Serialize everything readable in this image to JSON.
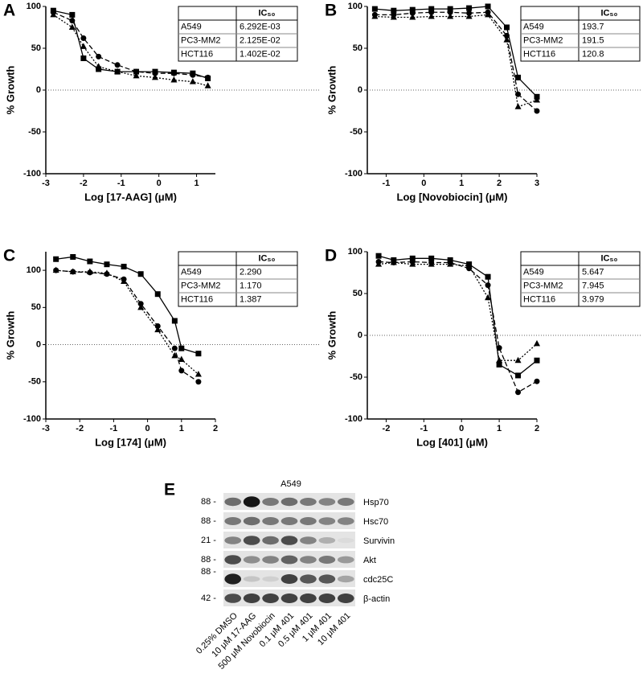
{
  "chart_data": [
    {
      "type": "line",
      "panel": "A",
      "xlabel": "Log [17-AAG] (μM)",
      "ylabel": "% Growth",
      "table_header": "IC₅₀",
      "xlim": [
        -3,
        1.5
      ],
      "xticks": [
        -3,
        -2,
        -1,
        0,
        1
      ],
      "ylim": [
        -100,
        100
      ],
      "yticks": [
        -100,
        -50,
        0,
        50,
        100
      ],
      "zero_line": true,
      "x": [
        -2.8,
        -2.3,
        -2.0,
        -1.6,
        -1.1,
        -0.6,
        -0.1,
        0.4,
        0.9,
        1.3
      ],
      "series": [
        {
          "name": "A549",
          "ic50": "6.292E-03",
          "color": "#000000",
          "marker": "circle",
          "line_style": "dashed",
          "values": [
            93,
            83,
            62,
            40,
            30,
            22,
            20,
            20,
            18,
            15
          ]
        },
        {
          "name": "PC3-MM2",
          "ic50": "2.125E-02",
          "color": "#000000",
          "marker": "square",
          "line_style": "solid",
          "values": [
            95,
            90,
            38,
            25,
            22,
            22,
            22,
            21,
            20,
            14
          ]
        },
        {
          "name": "HCT116",
          "ic50": "1.402E-02",
          "color": "#000000",
          "marker": "triangle",
          "line_style": "dotted",
          "values": [
            90,
            75,
            52,
            28,
            22,
            17,
            15,
            12,
            10,
            5
          ]
        }
      ]
    },
    {
      "type": "line",
      "panel": "B",
      "xlabel": "Log [Novobiocin] (μM)",
      "ylabel": "% Growth",
      "table_header": "IC₅₀",
      "xlim": [
        -1.5,
        3
      ],
      "xticks": [
        -1,
        0,
        1,
        2,
        3
      ],
      "ylim": [
        -100,
        100
      ],
      "yticks": [
        -100,
        -50,
        0,
        50,
        100
      ],
      "zero_line": true,
      "x": [
        -1.3,
        -0.8,
        -0.3,
        0.2,
        0.7,
        1.2,
        1.7,
        2.2,
        2.5,
        3.0
      ],
      "series": [
        {
          "name": "A549",
          "ic50": "193.7",
          "color": "#000000",
          "marker": "circle",
          "line_style": "dashed",
          "values": [
            90,
            90,
            92,
            93,
            93,
            92,
            93,
            65,
            -5,
            -25
          ]
        },
        {
          "name": "PC3-MM2",
          "ic50": "191.5",
          "color": "#000000",
          "marker": "square",
          "line_style": "solid",
          "values": [
            97,
            95,
            96,
            97,
            97,
            98,
            100,
            75,
            15,
            -8
          ]
        },
        {
          "name": "HCT116",
          "ic50": "120.8",
          "color": "#000000",
          "marker": "triangle",
          "line_style": "dotted",
          "values": [
            88,
            87,
            87,
            88,
            88,
            88,
            90,
            60,
            -20,
            -12
          ]
        }
      ]
    },
    {
      "type": "line",
      "panel": "C",
      "xlabel": "Log [174] (μM)",
      "ylabel": "% Growth",
      "table_header": "IC₅₀",
      "xlim": [
        -3,
        2
      ],
      "xticks": [
        -3,
        -2,
        -1,
        0,
        1,
        2
      ],
      "ylim": [
        -100,
        125
      ],
      "yticks": [
        -100,
        -50,
        0,
        50,
        100
      ],
      "zero_line": true,
      "x": [
        -2.7,
        -2.2,
        -1.7,
        -1.2,
        -0.7,
        -0.2,
        0.3,
        0.8,
        1.0,
        1.5
      ],
      "series": [
        {
          "name": "A549",
          "ic50": "2.290",
          "color": "#000000",
          "marker": "circle",
          "line_style": "dashed",
          "values": [
            100,
            98,
            97,
            95,
            88,
            55,
            25,
            -5,
            -35,
            -50
          ]
        },
        {
          "name": "PC3-MM2",
          "ic50": "1.170",
          "color": "#000000",
          "marker": "square",
          "line_style": "solid",
          "values": [
            115,
            118,
            112,
            108,
            105,
            95,
            68,
            32,
            -5,
            -12
          ]
        },
        {
          "name": "HCT116",
          "ic50": "1.387",
          "color": "#000000",
          "marker": "triangle",
          "line_style": "dotted",
          "values": [
            100,
            98,
            98,
            96,
            85,
            50,
            20,
            -15,
            -20,
            -40
          ]
        }
      ]
    },
    {
      "type": "line",
      "panel": "D",
      "xlabel": "Log [401] (μM)",
      "ylabel": "% Growth",
      "table_header": "IC₅₀",
      "xlim": [
        -2.5,
        2
      ],
      "xticks": [
        -2,
        -1,
        0,
        1,
        2
      ],
      "ylim": [
        -100,
        100
      ],
      "yticks": [
        -100,
        -50,
        0,
        50,
        100
      ],
      "zero_line": true,
      "x": [
        -2.2,
        -1.8,
        -1.3,
        -0.8,
        -0.3,
        0.2,
        0.7,
        1.0,
        1.5,
        2.0
      ],
      "series": [
        {
          "name": "A549",
          "ic50": "5.647",
          "color": "#000000",
          "marker": "circle",
          "line_style": "dashed",
          "values": [
            88,
            87,
            88,
            87,
            87,
            80,
            60,
            -15,
            -68,
            -55
          ]
        },
        {
          "name": "PC3-MM2",
          "ic50": "7.945",
          "color": "#000000",
          "marker": "square",
          "line_style": "solid",
          "values": [
            95,
            90,
            92,
            92,
            90,
            85,
            70,
            -35,
            -48,
            -30
          ]
        },
        {
          "name": "HCT116",
          "ic50": "3.979",
          "color": "#000000",
          "marker": "triangle",
          "line_style": "dotted",
          "values": [
            85,
            87,
            85,
            85,
            85,
            83,
            45,
            -30,
            -30,
            -10
          ]
        }
      ]
    }
  ],
  "blot": {
    "panel": "E",
    "title": "A549",
    "rows": [
      {
        "size": "88 -",
        "protein": "Hsp70"
      },
      {
        "size": "88 -",
        "protein": "Hsc70"
      },
      {
        "size": "21 -",
        "protein": "Survivin"
      },
      {
        "size": "88 -",
        "protein": "Akt"
      },
      {
        "size": "88 -",
        "protein": "cdc25C"
      },
      {
        "size": "42 -",
        "protein": "β-actin"
      }
    ],
    "lanes": [
      "0.25% DMSO",
      "10 μM 17-AAG",
      "500 μM Novobiocin",
      "0.1 μM 401",
      "0.5 μM 401",
      "1 μM 401",
      "10 μM 401"
    ]
  }
}
